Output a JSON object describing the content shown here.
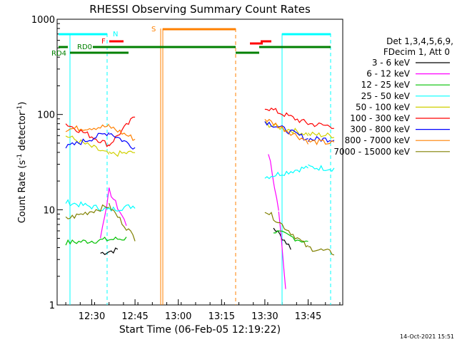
{
  "chart_data": {
    "type": "line",
    "title": "RHESSI Observing Summary Count Rates",
    "xlabel": "Start Time (06-Feb-05 12:19:22)",
    "ylabel_main": "Count Rate (s",
    "ylabel_sup1": "-1",
    "ylabel_mid": " detector",
    "ylabel_sup2": "-1",
    "ylabel_end": ")",
    "yscale": "log",
    "ylim": [
      1,
      1000
    ],
    "xlim_minutes": [
      12.3,
      13.95
    ],
    "y_ticks": [
      {
        "value": 1,
        "label": "1"
      },
      {
        "value": 10,
        "label": "10"
      },
      {
        "value": 100,
        "label": "100"
      },
      {
        "value": 1000,
        "label": "1000"
      }
    ],
    "x_ticks": [
      {
        "value": 12.5,
        "label": "12:30"
      },
      {
        "value": 12.75,
        "label": "12:45"
      },
      {
        "value": 13.0,
        "label": "13:00"
      },
      {
        "value": 13.25,
        "label": "13:15"
      },
      {
        "value": 13.5,
        "label": "13:30"
      },
      {
        "value": 13.75,
        "label": "13:45"
      }
    ],
    "legend_header": [
      "Det 1,3,4,5,6,9,",
      "FDecim 1, Att 0"
    ],
    "series": [
      {
        "name": "3 - 6 keV",
        "color": "#000000",
        "values": [
          [
            12.55,
            3.5
          ],
          [
            12.65,
            3.8
          ],
          [
            13.55,
            6.5
          ],
          [
            13.65,
            4
          ]
        ]
      },
      {
        "name": "6 - 12 keV",
        "color": "#ff00ff",
        "values": [
          [
            12.55,
            5
          ],
          [
            12.6,
            16
          ],
          [
            12.7,
            7
          ],
          [
            13.52,
            40
          ],
          [
            13.58,
            10
          ],
          [
            13.62,
            1.5
          ]
        ]
      },
      {
        "name": "12 - 25 keV",
        "color": "#00c000",
        "values": [
          [
            12.35,
            4.5
          ],
          [
            12.7,
            5
          ],
          [
            13.55,
            6
          ],
          [
            13.75,
            4.5
          ]
        ]
      },
      {
        "name": "25 - 50 keV",
        "color": "#00ffff",
        "values": [
          [
            12.35,
            12
          ],
          [
            12.6,
            10
          ],
          [
            12.75,
            11
          ],
          [
            13.5,
            22
          ],
          [
            13.75,
            28
          ],
          [
            13.9,
            27
          ]
        ]
      },
      {
        "name": "50 - 100 keV",
        "color": "#d0d000",
        "values": [
          [
            12.35,
            60
          ],
          [
            12.6,
            38
          ],
          [
            12.75,
            40
          ],
          [
            13.5,
            80
          ],
          [
            13.75,
            62
          ],
          [
            13.9,
            60
          ]
        ]
      },
      {
        "name": "100 - 300 keV",
        "color": "#ff0000",
        "values": [
          [
            12.35,
            80
          ],
          [
            12.6,
            48
          ],
          [
            12.75,
            95
          ],
          [
            13.5,
            120
          ],
          [
            13.75,
            80
          ],
          [
            13.9,
            75
          ]
        ]
      },
      {
        "name": "300 - 800 keV",
        "color": "#0000ff",
        "values": [
          [
            12.35,
            45
          ],
          [
            12.6,
            65
          ],
          [
            12.75,
            45
          ],
          [
            13.5,
            85
          ],
          [
            13.75,
            55
          ],
          [
            13.9,
            55
          ]
        ]
      },
      {
        "name": "800 - 7000 keV",
        "color": "#ff8000",
        "values": [
          [
            12.35,
            70
          ],
          [
            12.6,
            75
          ],
          [
            12.75,
            55
          ],
          [
            13.5,
            90
          ],
          [
            13.75,
            52
          ],
          [
            13.9,
            50
          ]
        ]
      },
      {
        "name": "7000 - 15000 keV",
        "color": "#808000",
        "values": [
          [
            12.35,
            8
          ],
          [
            12.6,
            11
          ],
          [
            12.75,
            5
          ],
          [
            13.5,
            10
          ],
          [
            13.75,
            4
          ],
          [
            13.9,
            3.5
          ]
        ]
      }
    ],
    "annotations": [
      {
        "label": "N",
        "color": "#00ffff"
      },
      {
        "label": "F",
        "color": "#ff0000"
      },
      {
        "label": "S",
        "color": "#ff8000"
      },
      {
        "label": "RD0",
        "color": "#008000"
      },
      {
        "label": "RD4",
        "color": "#008000"
      }
    ]
  },
  "footer_date": "14-Oct-2021 15:51"
}
